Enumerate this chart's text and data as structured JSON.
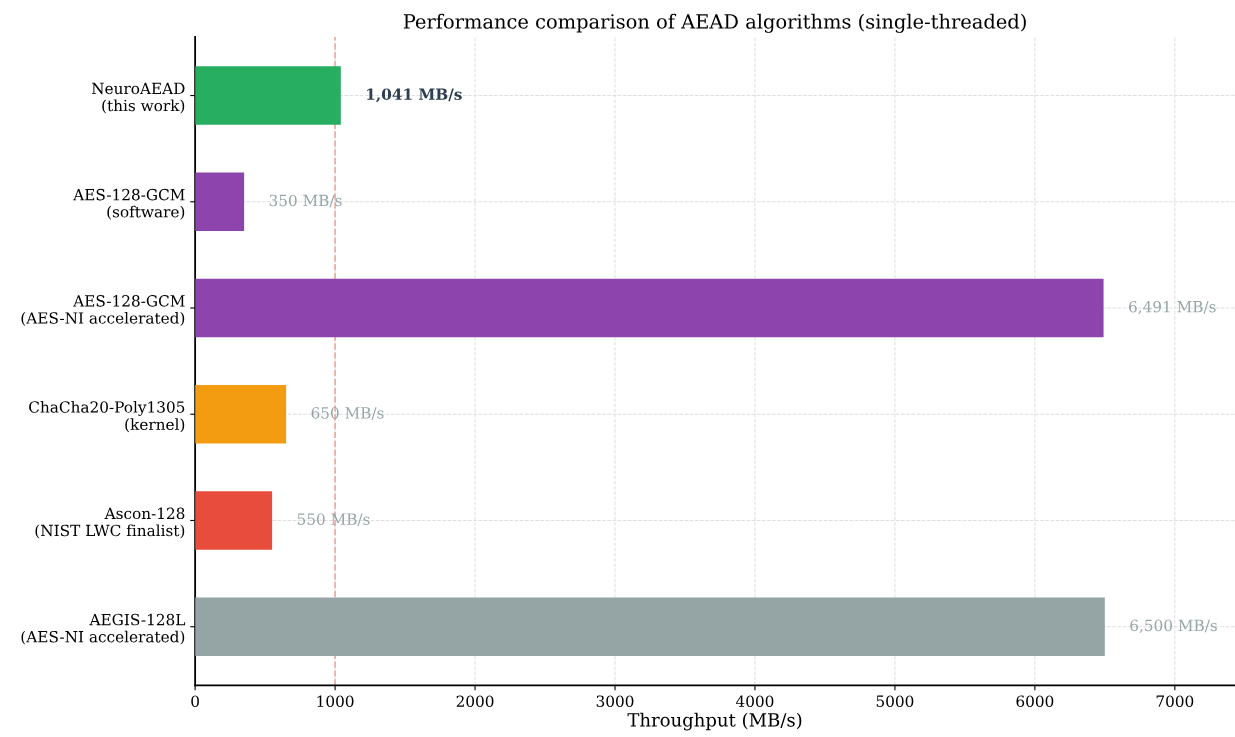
{
  "chart_data": {
    "type": "bar",
    "orientation": "horizontal",
    "title": "Performance comparison of AEAD algorithms (single-threaded)",
    "xlabel": "Throughput (MB/s)",
    "categories": [
      "NeuroAEAD\n(this work)",
      "AES-128-GCM\n(software)",
      "AES-128-GCM\n(AES-NI accelerated)",
      "ChaCha20-Poly1305\n(kernel)",
      "Ascon-128\n(NIST LWC finalist)",
      "AEGIS-128L\n(AES-NI accelerated)"
    ],
    "values": [
      1041,
      350,
      6491,
      650,
      550,
      6500
    ],
    "colors": [
      "#27ae60",
      "#8e44ad",
      "#8e44ad",
      "#f39c12",
      "#e74c3c",
      "#95a5a6"
    ],
    "value_labels": [
      "1,041 MB/s",
      "350 MB/s",
      "6,491 MB/s",
      "650 MB/s",
      "550 MB/s",
      "6,500 MB/s"
    ],
    "xlim": [
      0,
      7430
    ],
    "xticks": [
      0,
      1000,
      2000,
      3000,
      4000,
      5000,
      6000,
      7000
    ],
    "ref_lines": [
      {
        "axis": "x",
        "value": 1000,
        "label": null,
        "color": "#f1a9a0",
        "line_style": "dashed"
      }
    ],
    "grid": true
  }
}
